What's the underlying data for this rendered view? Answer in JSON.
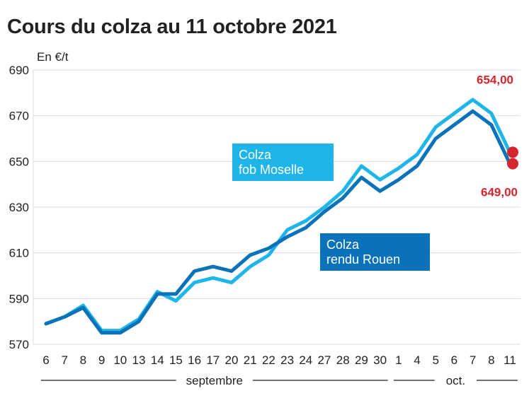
{
  "chart_data": {
    "type": "line",
    "title": "Cours du colza au 11 octobre 2021",
    "ylabel": "En €/t",
    "xlabel": "",
    "ylim": [
      570,
      690
    ],
    "yticks": [
      570,
      590,
      610,
      630,
      650,
      670,
      690
    ],
    "categories": [
      "6",
      "7",
      "8",
      "9",
      "10",
      "13",
      "14",
      "15",
      "16",
      "17",
      "20",
      "21",
      "22",
      "23",
      "24",
      "27",
      "28",
      "29",
      "30",
      "1",
      "4",
      "5",
      "6",
      "7",
      "8",
      "11"
    ],
    "month_groups": [
      {
        "label": "septembre",
        "from": "6",
        "to": "30"
      },
      {
        "label": "oct.",
        "from": "1",
        "to": "11"
      }
    ],
    "grid": "horizontal",
    "series": [
      {
        "name": "Colza fob Moselle",
        "label_lines": [
          "Colza",
          "fob Moselle"
        ],
        "color": "#1fb5e8",
        "values": [
          579,
          582,
          587,
          576,
          576,
          581,
          593,
          589,
          597,
          599,
          597,
          604,
          609,
          620,
          624,
          630,
          637,
          648,
          642,
          647,
          653,
          665,
          671,
          677,
          671,
          654
        ],
        "end_label": "654,00"
      },
      {
        "name": "Colza rendu Rouen",
        "label_lines": [
          "Colza",
          "rendu Rouen"
        ],
        "color": "#0a72b8",
        "values": [
          579,
          582,
          586,
          575,
          575,
          580,
          592,
          592,
          602,
          604,
          602,
          609,
          612,
          617,
          621,
          628,
          634,
          643,
          637,
          642,
          648,
          660,
          666,
          672,
          666,
          649
        ],
        "end_label": "649,00"
      }
    ],
    "end_marker_color": "#d3262e"
  }
}
